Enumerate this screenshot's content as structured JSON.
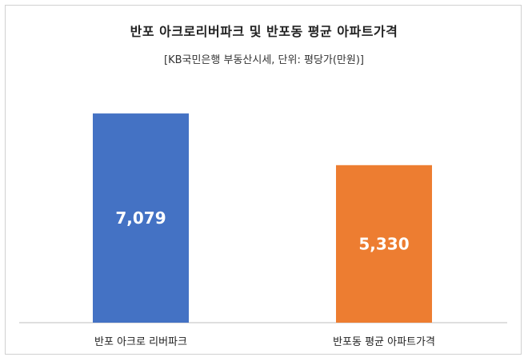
{
  "chart_data": {
    "type": "bar",
    "title": "반포 아크로리버파크 및 반포동 평균 아파트가격",
    "subtitle": "[KB국민은행 부동산시세, 단위: 평당가(만원)]",
    "categories": [
      "반포 아크로 리버파크",
      "반포동 평균 아파트가격"
    ],
    "values": [
      7079,
      5330
    ],
    "value_labels": [
      "7,079",
      "5,330"
    ],
    "colors": [
      "#4472c4",
      "#ed7d31"
    ],
    "ylim": [
      0,
      8000
    ],
    "grid": false,
    "legend": "none"
  }
}
